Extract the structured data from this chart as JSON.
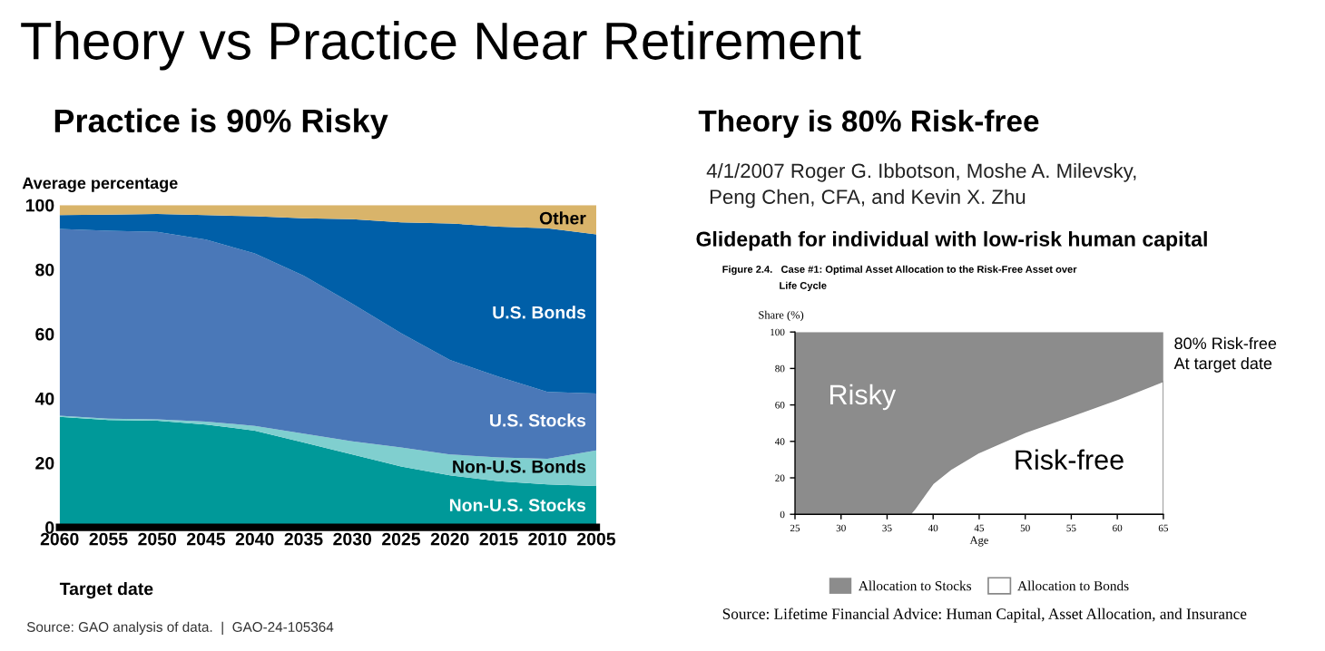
{
  "chart_data": [
    {
      "type": "area",
      "stacked": true,
      "title": "Practice is 90% Risky",
      "xlabel": "Target date",
      "ylabel": "Average percentage",
      "x": [
        2060,
        2055,
        2050,
        2045,
        2040,
        2035,
        2030,
        2025,
        2020,
        2015,
        2010,
        2005
      ],
      "xlim": [
        2060,
        2005
      ],
      "xticks": [
        2060,
        2055,
        2050,
        2045,
        2040,
        2035,
        2030,
        2025,
        2020,
        2015,
        2010,
        2005
      ],
      "ylim": [
        0,
        100
      ],
      "yticks": [
        0,
        20,
        40,
        60,
        80,
        100
      ],
      "grid": false,
      "legend": false,
      "series": [
        {
          "name": "Non-U.S. Stocks",
          "color": "#009999",
          "values": [
            34.3,
            33.3,
            33.1,
            31.9,
            30.0,
            26.3,
            22.6,
            18.9,
            16.1,
            14.3,
            13.3,
            12.8
          ]
        },
        {
          "name": "Non-U.S. Bonds",
          "color": "#80cfcf",
          "values": [
            0.3,
            0.4,
            0.4,
            0.9,
            1.5,
            2.8,
            4.1,
            5.9,
            6.5,
            7.4,
            8.0,
            11.1
          ]
        },
        {
          "name": "U.S. Stocks",
          "color": "#4a78b8",
          "values": [
            58.0,
            58.3,
            58.2,
            56.5,
            53.5,
            49.0,
            42.7,
            35.4,
            29.3,
            25.0,
            20.7,
            17.6
          ]
        },
        {
          "name": "U.S. Bonds",
          "color": "#005fa8",
          "values": [
            4.3,
            5.0,
            5.5,
            7.6,
            11.5,
            17.8,
            26.2,
            34.4,
            42.4,
            46.6,
            50.8,
            49.4
          ]
        },
        {
          "name": "Other",
          "color": "#d9b46a",
          "values": [
            3.1,
            3.0,
            2.8,
            3.1,
            3.5,
            4.1,
            4.4,
            5.4,
            5.7,
            6.7,
            7.2,
            9.1
          ]
        }
      ],
      "annotations": [
        "Theory vs Practice Near Retirement",
        "Source: GAO analysis of data.  |  GAO-24-105364"
      ]
    },
    {
      "type": "area",
      "stacked": true,
      "title": "Theory is 80% Risk-free",
      "subtitle": "Glidepath for individual with low-risk human capital",
      "xlabel": "Age",
      "ylabel": "Share (%)",
      "x": [
        25,
        37.5,
        38,
        39,
        40,
        42,
        45,
        50,
        55,
        60,
        65
      ],
      "xlim": [
        25,
        65
      ],
      "xticks": [
        25,
        30,
        35,
        40,
        45,
        50,
        55,
        60,
        65
      ],
      "ylim": [
        0,
        100
      ],
      "yticks": [
        0,
        20,
        40,
        60,
        80,
        100
      ],
      "grid": false,
      "legend": "bottom",
      "series": [
        {
          "name": "Allocation to Bonds",
          "color": "#ffffff",
          "values": [
            0,
            0,
            3,
            10,
            17,
            25,
            34,
            45,
            54,
            63,
            73
          ]
        },
        {
          "name": "Allocation to Stocks",
          "color": "#8c8c8c",
          "values": [
            100,
            100,
            97,
            90,
            83,
            75,
            66,
            55,
            46,
            37,
            27
          ]
        }
      ],
      "annotations": [
        "4/1/2007 Roger G. Ibbotson, Moshe A. Milevsky,",
        "Peng Chen, CFA, and Kevin X. Zhu",
        "Figure 2.4.   Case #1: Optimal Asset Allocation to the Risk-Free Asset over",
        "Life Cycle",
        "Source: Lifetime Financial Advice: Human Capital, Asset Allocation, and Insurance",
        "Risky",
        "Risk-free",
        "80% Risk-free\nAt target date"
      ]
    }
  ]
}
